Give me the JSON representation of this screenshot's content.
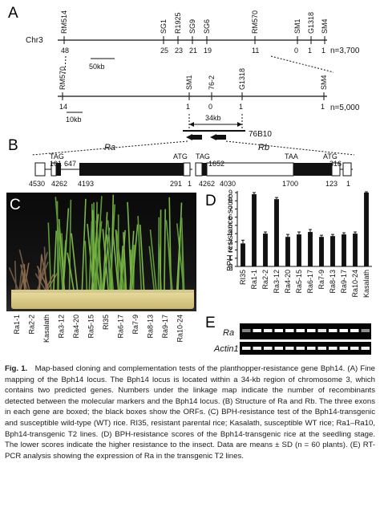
{
  "panels": {
    "A": {
      "letter": "A",
      "chromosome": "Chr3",
      "map1": {
        "markers": [
          "RM514",
          "SG1",
          "R1925",
          "SG9",
          "SG6",
          "RM570",
          "SM1",
          "G1318",
          "SM4"
        ],
        "counts": [
          "48",
          "25",
          "23",
          "21",
          "19",
          "11",
          "0",
          "1",
          "1"
        ],
        "n": "n=3,700",
        "scale": "50kb"
      },
      "map2": {
        "markers": [
          "RM570",
          "SM1",
          "76-2",
          "G1318",
          "SM4"
        ],
        "counts": [
          "14",
          "1",
          "0",
          "1",
          "1"
        ],
        "n": "n=5,000",
        "scale": "10kb",
        "region": "34kb",
        "bac": "76B10"
      }
    },
    "B": {
      "letter": "B",
      "genes": [
        "Ra",
        "Rb"
      ],
      "ra_labels": [
        "TAG",
        "101",
        "647",
        "ATG",
        "4530",
        "4262",
        "4193",
        "291",
        "1"
      ],
      "rb_labels": [
        "TAG",
        "1652",
        "TAA",
        "ATG",
        "316",
        "4262",
        "4030",
        "1700",
        "123",
        "1"
      ]
    },
    "C": {
      "letter": "C",
      "lines": [
        "Ra1-1",
        "Ra2-2",
        "Kasalath",
        "Ra3-12",
        "Ra4-20",
        "Ra5-15",
        "RI35",
        "Ra6-17",
        "Ra7-9",
        "Ra8-13",
        "Ra9-17",
        "Ra10-24"
      ]
    },
    "D": {
      "letter": "D",
      "ylabel": "BPH resistance score",
      "chart_data": {
        "type": "bar",
        "categories": [
          "RI35",
          "Ra1-1",
          "Ra2-2",
          "Ra3-12",
          "Ra4-20",
          "Ra5-15",
          "Ra6-17",
          "Ra7-9",
          "Ra8-13",
          "Ra9-17",
          "Ra10-24",
          "Kasalath"
        ],
        "values": [
          2.8,
          8.8,
          4.0,
          8.2,
          3.6,
          3.9,
          4.2,
          3.6,
          3.7,
          3.9,
          4.0,
          9.0
        ],
        "errors": [
          0.4,
          0.2,
          0.2,
          0.2,
          0.3,
          0.3,
          0.3,
          0.2,
          0.2,
          0.2,
          0.2,
          0.1
        ],
        "ylim": [
          0,
          9
        ],
        "yticks": [
          "0",
          "1",
          "2",
          "3",
          "4",
          "5",
          "6",
          "7",
          "8",
          "9"
        ],
        "ylabel": "BPH resistance score",
        "xlabel": ""
      }
    },
    "E": {
      "letter": "E",
      "rows": [
        "Ra",
        "Actin1"
      ]
    }
  },
  "caption": {
    "title": "Fig. 1.",
    "text": "Map-based cloning and complementation tests of the planthopper-resistance gene Bph14. (A) Fine mapping of the Bph14 locus. The Bph14 locus is located within a 34-kb region of chromosome 3, which contains two predicted genes. Numbers under the linkage map indicate the number of recombinants detected between the molecular markers and the Bph14 locus. (B) Structure of Ra and Rb. The three exons in each gene are boxed; the black boxes show the ORFs. (C) BPH-resistance test of the Bph14-transgenic and susceptible wild-type (WT) rice. RI35, resistant parental rice; Kasalath, susceptible WT rice; Ra1–Ra10, Bph14-transgenic T2 lines. (D) BPH-resistance scores of the Bph14-transgenic rice at the seedling stage. The lower scores indicate the higher resistance to the insect. Data are means ± SD (n = 60 plants). (E) RT-PCR analysis showing the expression of Ra in the transgenic T2 lines."
  }
}
